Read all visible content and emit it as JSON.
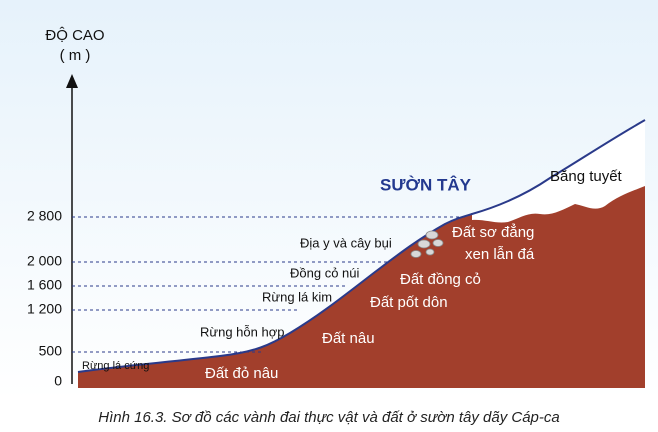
{
  "axis": {
    "title": "ĐỘ CAO",
    "unit": "( m )",
    "ticks": [
      "0",
      "500",
      "1 200",
      "1 600",
      "2 000",
      "2 800"
    ]
  },
  "vegetation_belts": [
    "Rừng lá cứng",
    "Rừng hỗn hợp",
    "Rừng lá kim",
    "Đồng cỏ núi",
    "Địa y và cây bụi"
  ],
  "soil_belts": [
    "Đất đỏ nâu",
    "Đất nâu",
    "Đất pốt dôn",
    "Đất đồng cỏ",
    "Đất sơ đẳng",
    "xen lẫn đá"
  ],
  "slope_label": "SƯỜN TÂY",
  "snow_label": "Băng tuyết",
  "caption": "Hình 16.3. Sơ đồ các vành đai thực vật và đất ở sườn tây dãy Cáp-ca"
}
